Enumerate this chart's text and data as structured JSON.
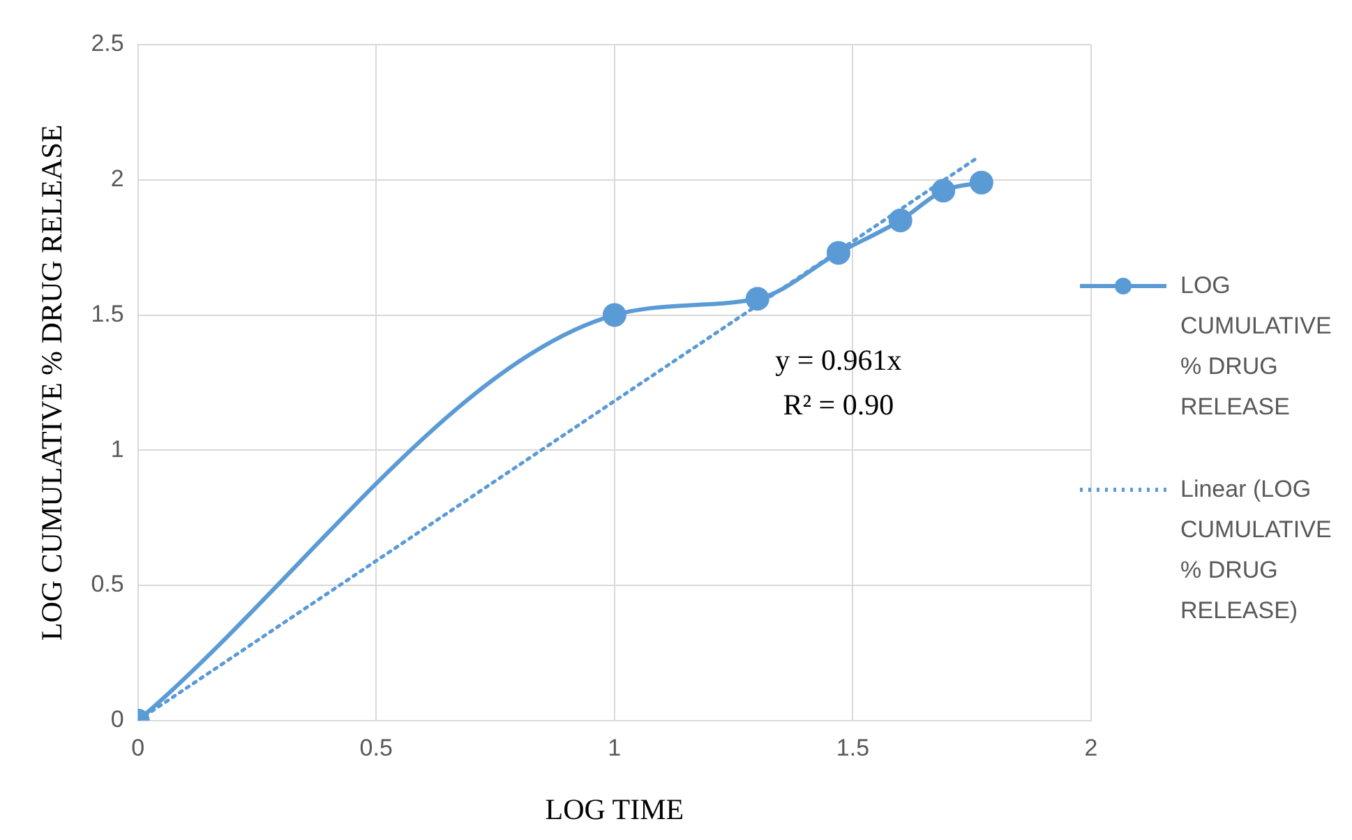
{
  "chart_data": {
    "type": "line",
    "xlabel": "LOG TIME",
    "ylabel": "LOG CUMULATIVE % DRUG RELEASE",
    "xlim": [
      0,
      2
    ],
    "xticks": [
      0,
      0.5,
      1,
      1.5,
      2
    ],
    "ylim": [
      0,
      2.5
    ],
    "yticks": [
      0,
      0.5,
      1,
      1.5,
      2,
      2.5
    ],
    "grid": true,
    "legend": "right",
    "series": [
      {
        "name": "LOG CUMULATIVE % DRUG RELEASE",
        "color": "#5b9bd5",
        "marker": "circle",
        "line_style": "solid",
        "x": [
          0,
          1,
          1.3,
          1.47,
          1.6,
          1.69,
          1.77
        ],
        "values": [
          0,
          1.5,
          1.56,
          1.73,
          1.85,
          1.96,
          1.99
        ]
      },
      {
        "name": "Linear (LOG CUMULATIVE % DRUG RELEASE)",
        "type": "line",
        "color": "#5b9bd5",
        "marker": "none",
        "line_style": "dotted",
        "x": [
          0,
          1.76
        ],
        "values": [
          0,
          2.08
        ]
      }
    ],
    "annotations": [
      "y = 0.961x",
      "R² = 0.90"
    ]
  }
}
